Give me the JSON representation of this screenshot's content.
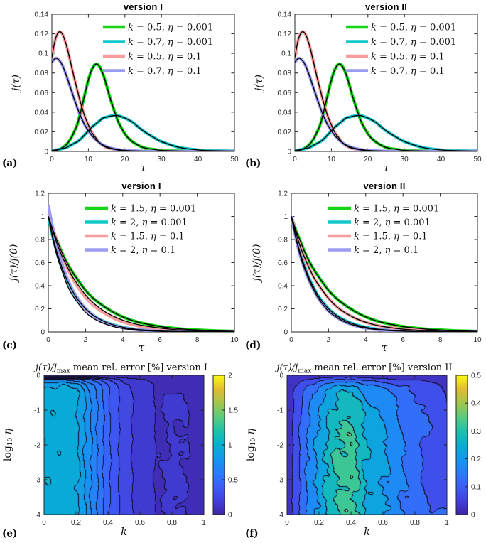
{
  "colors": {
    "green": "#16d416",
    "cyan": "#14c8c8",
    "pink": "#f79d9d",
    "purple": "#9b9bf2",
    "fit_black": "#000000",
    "axis": "#262626",
    "contour_line": "#10102d",
    "parula_stops": [
      "#3e26a8",
      "#4240dd",
      "#3e5ef9",
      "#287dfb",
      "#1498ee",
      "#07b0d0",
      "#1fc2ac",
      "#58cb7e",
      "#a1c74f",
      "#e2bb32",
      "#f9fa14"
    ]
  },
  "chart_data": [
    {
      "id": "a",
      "type": "line",
      "letter": "(a)",
      "title": "version I",
      "xlabel": "τ",
      "ylabel": "j(τ)",
      "xlim": [
        0,
        50
      ],
      "ylim": [
        0,
        0.14
      ],
      "xticks": [
        0,
        10,
        20,
        30,
        40,
        50
      ],
      "yticks": [
        0,
        0.02,
        0.04,
        0.06,
        0.08,
        0.1,
        0.12,
        0.14
      ],
      "x": [
        0,
        1,
        2,
        3,
        4,
        5,
        6,
        7,
        8,
        9,
        10,
        11,
        12,
        13,
        14,
        15,
        16,
        18,
        20,
        22,
        25,
        28,
        30,
        35,
        40,
        45,
        50
      ],
      "series": [
        {
          "label": "k = 0.5, η = 0.001",
          "color": "green",
          "y": [
            0.001,
            0.001,
            0.002,
            0.004,
            0.007,
            0.012,
            0.019,
            0.028,
            0.042,
            0.058,
            0.073,
            0.084,
            0.089,
            0.087,
            0.079,
            0.067,
            0.054,
            0.032,
            0.018,
            0.01,
            0.004,
            0.002,
            0.001,
            0.0004,
            0.0002,
            0.0001,
            0.0001
          ]
        },
        {
          "label": "k = 0.7, η = 0.001",
          "color": "cyan",
          "y": [
            0.001,
            0.0015,
            0.002,
            0.003,
            0.004,
            0.006,
            0.008,
            0.01,
            0.013,
            0.017,
            0.021,
            0.025,
            0.028,
            0.031,
            0.034,
            0.035,
            0.036,
            0.0365,
            0.034,
            0.03,
            0.021,
            0.014,
            0.01,
            0.004,
            0.0015,
            0.0007,
            0.0004
          ]
        },
        {
          "label": "k = 0.5, η = 0.1",
          "color": "pink",
          "y": [
            0.096,
            0.115,
            0.122,
            0.119,
            0.108,
            0.093,
            0.077,
            0.062,
            0.048,
            0.036,
            0.027,
            0.019,
            0.014,
            0.009,
            0.006,
            0.004,
            0.003,
            0.0015,
            0.0008,
            0.0004,
            0.0002,
            0.0001,
            0.0001,
            0,
            0,
            0,
            0
          ]
        },
        {
          "label": "k = 0.7, η = 0.1",
          "color": "purple",
          "y": [
            0.091,
            0.095,
            0.093,
            0.087,
            0.077,
            0.066,
            0.055,
            0.044,
            0.035,
            0.027,
            0.021,
            0.016,
            0.012,
            0.009,
            0.0065,
            0.005,
            0.0035,
            0.002,
            0.001,
            0.0006,
            0.0003,
            0.0001,
            0.0001,
            0,
            0,
            0,
            0
          ]
        }
      ]
    },
    {
      "id": "b",
      "type": "line",
      "letter": "(b)",
      "title": "version II",
      "xlabel": "τ",
      "ylabel": "j(τ)",
      "xlim": [
        0,
        50
      ],
      "ylim": [
        0,
        0.14
      ],
      "xticks": [
        0,
        10,
        20,
        30,
        40,
        50
      ],
      "yticks": [
        0,
        0.02,
        0.04,
        0.06,
        0.08,
        0.1,
        0.12,
        0.14
      ],
      "x": [
        0,
        1,
        2,
        3,
        4,
        5,
        6,
        7,
        8,
        9,
        10,
        11,
        12,
        13,
        14,
        15,
        16,
        18,
        20,
        22,
        25,
        28,
        30,
        35,
        40,
        45,
        50
      ],
      "series": [
        {
          "label": "k = 0.5, η = 0.001",
          "color": "green",
          "y": [
            0.001,
            0.001,
            0.002,
            0.004,
            0.007,
            0.012,
            0.019,
            0.028,
            0.042,
            0.058,
            0.073,
            0.084,
            0.089,
            0.087,
            0.079,
            0.067,
            0.054,
            0.032,
            0.018,
            0.01,
            0.004,
            0.002,
            0.001,
            0.0004,
            0.0002,
            0.0001,
            0.0001
          ]
        },
        {
          "label": "k = 0.7, η = 0.001",
          "color": "cyan",
          "y": [
            0.001,
            0.0015,
            0.002,
            0.003,
            0.004,
            0.006,
            0.008,
            0.01,
            0.013,
            0.017,
            0.021,
            0.025,
            0.028,
            0.031,
            0.034,
            0.035,
            0.036,
            0.0365,
            0.034,
            0.03,
            0.021,
            0.014,
            0.01,
            0.004,
            0.0015,
            0.0007,
            0.0004
          ]
        },
        {
          "label": "k = 0.5, η = 0.1",
          "color": "pink",
          "y": [
            0.096,
            0.115,
            0.122,
            0.119,
            0.108,
            0.093,
            0.077,
            0.062,
            0.048,
            0.036,
            0.027,
            0.019,
            0.014,
            0.009,
            0.006,
            0.004,
            0.003,
            0.0015,
            0.0008,
            0.0004,
            0.0002,
            0.0001,
            0.0001,
            0,
            0,
            0,
            0
          ]
        },
        {
          "label": "k = 0.7, η = 0.1",
          "color": "purple",
          "y": [
            0.091,
            0.095,
            0.093,
            0.087,
            0.077,
            0.066,
            0.055,
            0.044,
            0.035,
            0.027,
            0.021,
            0.016,
            0.012,
            0.009,
            0.0065,
            0.005,
            0.0035,
            0.002,
            0.001,
            0.0006,
            0.0003,
            0.0001,
            0.0001,
            0,
            0,
            0,
            0
          ]
        }
      ]
    },
    {
      "id": "c",
      "type": "line",
      "letter": "(c)",
      "title": "version I",
      "xlabel": "τ",
      "ylabel": "j(τ)/j(0)",
      "xlim": [
        0,
        10
      ],
      "ylim": [
        0,
        1.2
      ],
      "xticks": [
        0,
        2,
        4,
        6,
        8,
        10
      ],
      "yticks": [
        0,
        0.2,
        0.4,
        0.6,
        0.8,
        1,
        1.2
      ],
      "x": [
        0,
        0.25,
        0.5,
        0.75,
        1,
        1.25,
        1.5,
        2,
        2.5,
        3,
        3.5,
        4,
        4.5,
        5,
        6,
        7,
        8,
        9,
        10
      ],
      "series": [
        {
          "label": "k = 1.5, η = 0.001",
          "color": "green",
          "y": [
            1,
            0.88,
            0.78,
            0.68,
            0.6,
            0.53,
            0.47,
            0.36,
            0.28,
            0.22,
            0.17,
            0.13,
            0.1,
            0.078,
            0.047,
            0.028,
            0.017,
            0.01,
            0.006
          ]
        },
        {
          "label": "k = 2, η = 0.001",
          "color": "cyan",
          "y": [
            1,
            0.82,
            0.67,
            0.55,
            0.45,
            0.37,
            0.3,
            0.2,
            0.135,
            0.091,
            0.061,
            0.041,
            0.027,
            0.018,
            0.008,
            0.004,
            0.002,
            0.001,
            0.0005
          ]
        },
        {
          "label": "k = 1.5, η = 0.1",
          "color": "pink",
          "y": [
            1.05,
            0.9,
            0.77,
            0.66,
            0.56,
            0.48,
            0.41,
            0.3,
            0.22,
            0.164,
            0.12,
            0.088,
            0.065,
            0.047,
            0.026,
            0.014,
            0.0074,
            0.004,
            0.002
          ],
          "fit_y": [
            1,
            0.87,
            0.75,
            0.65,
            0.57,
            0.49,
            0.43,
            0.32,
            0.24,
            0.18,
            0.136,
            0.102,
            0.077,
            0.058,
            0.033,
            0.018,
            0.01,
            0.006,
            0.003
          ]
        },
        {
          "label": "k = 2, η = 0.1",
          "color": "purple",
          "y": [
            1.1,
            0.89,
            0.72,
            0.58,
            0.47,
            0.38,
            0.31,
            0.2,
            0.131,
            0.086,
            0.056,
            0.037,
            0.024,
            0.016,
            0.0068,
            0.0029,
            0.0012,
            0.0005,
            0.0002
          ],
          "fit_y": [
            1,
            0.8,
            0.64,
            0.52,
            0.41,
            0.33,
            0.27,
            0.17,
            0.11,
            0.072,
            0.046,
            0.03,
            0.019,
            0.012,
            0.005,
            0.002,
            0.0009,
            0.0004,
            0.0002
          ]
        }
      ]
    },
    {
      "id": "d",
      "type": "line",
      "letter": "(d)",
      "title": "version II",
      "xlabel": "τ",
      "ylabel": "j(τ)/j(0)",
      "xlim": [
        0,
        10
      ],
      "ylim": [
        0,
        1.2
      ],
      "xticks": [
        0,
        2,
        4,
        6,
        8,
        10
      ],
      "yticks": [
        0,
        0.2,
        0.4,
        0.6,
        0.8,
        1,
        1.2
      ],
      "x": [
        0,
        0.25,
        0.5,
        0.75,
        1,
        1.25,
        1.5,
        2,
        2.5,
        3,
        3.5,
        4,
        4.5,
        5,
        6,
        7,
        8,
        9,
        10
      ],
      "series": [
        {
          "label": "k = 1.5, η = 0.001",
          "color": "green",
          "y": [
            1,
            0.88,
            0.78,
            0.68,
            0.6,
            0.53,
            0.47,
            0.36,
            0.28,
            0.22,
            0.17,
            0.13,
            0.1,
            0.078,
            0.047,
            0.028,
            0.017,
            0.01,
            0.006
          ]
        },
        {
          "label": "k = 2, η = 0.001",
          "color": "cyan",
          "y": [
            1,
            0.82,
            0.67,
            0.55,
            0.45,
            0.37,
            0.3,
            0.2,
            0.135,
            0.091,
            0.061,
            0.041,
            0.027,
            0.018,
            0.008,
            0.004,
            0.002,
            0.001,
            0.0005
          ]
        },
        {
          "label": "k = 1.5, η = 0.1",
          "color": "pink",
          "y": [
            1,
            0.86,
            0.73,
            0.63,
            0.54,
            0.46,
            0.4,
            0.29,
            0.21,
            0.156,
            0.114,
            0.084,
            0.061,
            0.045,
            0.024,
            0.013,
            0.007,
            0.0038,
            0.002
          ]
        },
        {
          "label": "k = 2, η = 0.1",
          "color": "purple",
          "y": [
            1,
            0.81,
            0.65,
            0.53,
            0.43,
            0.35,
            0.28,
            0.18,
            0.12,
            0.078,
            0.051,
            0.033,
            0.022,
            0.014,
            0.006,
            0.0026,
            0.0011,
            0.0005,
            0.0002
          ]
        }
      ]
    },
    {
      "id": "e",
      "type": "contour",
      "letter": "(e)",
      "title_math": "j(τ)/j",
      "title_sub": "max",
      "title_rest": " mean rel. error [%] version I",
      "xlabel": "k",
      "ylabel_pre": "log",
      "ylabel_sub": "10",
      "ylabel_post": " η",
      "xlim": [
        0,
        1
      ],
      "ylim": [
        -4,
        0
      ],
      "xticks": [
        0,
        0.2,
        0.4,
        0.6,
        0.8,
        1
      ],
      "yticks": [
        0,
        -1,
        -2,
        -3,
        -4
      ],
      "levels_step": 0.1,
      "cmax": 2,
      "colorbar_ticks": [
        0,
        0.5,
        1,
        1.5,
        2
      ],
      "grid_k": [
        0,
        0.1,
        0.2,
        0.3,
        0.4,
        0.5,
        0.6,
        0.7,
        0.8,
        0.9,
        1
      ],
      "grid_logeta": [
        0,
        -0.1,
        -0.25,
        -0.5,
        -1,
        -1.5,
        -2,
        -3,
        -4
      ],
      "values": [
        [
          0.03,
          0.03,
          0.03,
          0.02,
          0.01,
          0.01,
          0.005,
          0.004,
          0.004,
          0.004,
          0.003
        ],
        [
          0.68,
          0.67,
          0.65,
          0.48,
          0.29,
          0.17,
          0.11,
          0.07,
          0.07,
          0.07,
          0.05
        ],
        [
          0.9,
          0.89,
          0.86,
          0.63,
          0.39,
          0.22,
          0.15,
          0.09,
          0.1,
          0.09,
          0.07
        ],
        [
          0.96,
          0.95,
          0.92,
          0.67,
          0.42,
          0.24,
          0.16,
          0.09,
          0.1,
          0.1,
          0.07
        ],
        [
          0.97,
          0.96,
          0.93,
          0.68,
          0.42,
          0.24,
          0.16,
          0.1,
          0.11,
          0.1,
          0.07
        ],
        [
          0.97,
          0.96,
          0.93,
          0.68,
          0.42,
          0.24,
          0.16,
          0.09,
          0.1,
          0.1,
          0.07
        ],
        [
          0.97,
          0.96,
          0.93,
          0.68,
          0.42,
          0.24,
          0.16,
          0.1,
          0.1,
          0.1,
          0.07
        ],
        [
          0.97,
          0.96,
          0.93,
          0.68,
          0.42,
          0.24,
          0.16,
          0.09,
          0.11,
          0.1,
          0.07
        ],
        [
          0.97,
          0.96,
          0.93,
          0.68,
          0.42,
          0.24,
          0.16,
          0.1,
          0.1,
          0.1,
          0.07
        ]
      ]
    },
    {
      "id": "f",
      "type": "contour",
      "letter": "(f)",
      "title_math": "j(τ)/j",
      "title_sub": "max",
      "title_rest": " mean rel. error [%] version II",
      "xlabel": "k",
      "ylabel_pre": "log",
      "ylabel_sub": "10",
      "ylabel_post": " η",
      "xlim": [
        0,
        1
      ],
      "ylim": [
        -4,
        0
      ],
      "xticks": [
        0,
        0.2,
        0.4,
        0.6,
        0.8,
        1
      ],
      "yticks": [
        0,
        -1,
        -2,
        -3,
        -4
      ],
      "levels_step": 0.05,
      "cmax": 0.5,
      "colorbar_ticks": [
        0,
        0.1,
        0.2,
        0.3,
        0.4,
        0.5
      ],
      "grid_k": [
        0,
        0.05,
        0.1,
        0.15,
        0.2,
        0.3,
        0.4,
        0.5,
        0.6,
        0.7,
        0.8,
        0.9,
        1
      ],
      "grid_logeta": [
        0,
        -0.15,
        -0.3,
        -0.5,
        -0.75,
        -1,
        -1.5,
        -2,
        -2.5,
        -3,
        -3.5,
        -4
      ],
      "values": [
        [
          0.004,
          0.004,
          0.01,
          0.01,
          0.01,
          0.02,
          0.02,
          0.01,
          0.01,
          0.01,
          0.01,
          0.01,
          0.004
        ],
        [
          0.01,
          0.03,
          0.06,
          0.08,
          0.1,
          0.14,
          0.15,
          0.11,
          0.09,
          0.07,
          0.06,
          0.05,
          0.03
        ],
        [
          0.01,
          0.05,
          0.09,
          0.12,
          0.15,
          0.2,
          0.22,
          0.16,
          0.14,
          0.11,
          0.09,
          0.07,
          0.04
        ],
        [
          0.02,
          0.06,
          0.1,
          0.14,
          0.18,
          0.24,
          0.26,
          0.19,
          0.17,
          0.13,
          0.1,
          0.08,
          0.05
        ],
        [
          0.02,
          0.06,
          0.11,
          0.15,
          0.19,
          0.26,
          0.28,
          0.21,
          0.18,
          0.14,
          0.11,
          0.09,
          0.05
        ],
        [
          0.02,
          0.06,
          0.12,
          0.16,
          0.2,
          0.27,
          0.3,
          0.22,
          0.19,
          0.14,
          0.12,
          0.09,
          0.05
        ],
        [
          0.02,
          0.07,
          0.13,
          0.17,
          0.21,
          0.29,
          0.32,
          0.23,
          0.2,
          0.16,
          0.13,
          0.1,
          0.06
        ],
        [
          0.02,
          0.07,
          0.13,
          0.18,
          0.22,
          0.3,
          0.33,
          0.24,
          0.21,
          0.16,
          0.12,
          0.07,
          0.06
        ],
        [
          0.02,
          0.07,
          0.13,
          0.18,
          0.22,
          0.31,
          0.34,
          0.24,
          0.21,
          0.16,
          0.12,
          0.07,
          0.06
        ],
        [
          0.02,
          0.07,
          0.13,
          0.18,
          0.22,
          0.3,
          0.33,
          0.24,
          0.21,
          0.16,
          0.12,
          0.07,
          0.06
        ],
        [
          0.02,
          0.07,
          0.13,
          0.18,
          0.22,
          0.3,
          0.33,
          0.24,
          0.21,
          0.16,
          0.13,
          0.08,
          0.06
        ],
        [
          0.02,
          0.07,
          0.13,
          0.18,
          0.22,
          0.3,
          0.33,
          0.24,
          0.21,
          0.16,
          0.13,
          0.1,
          0.12
        ]
      ]
    }
  ]
}
